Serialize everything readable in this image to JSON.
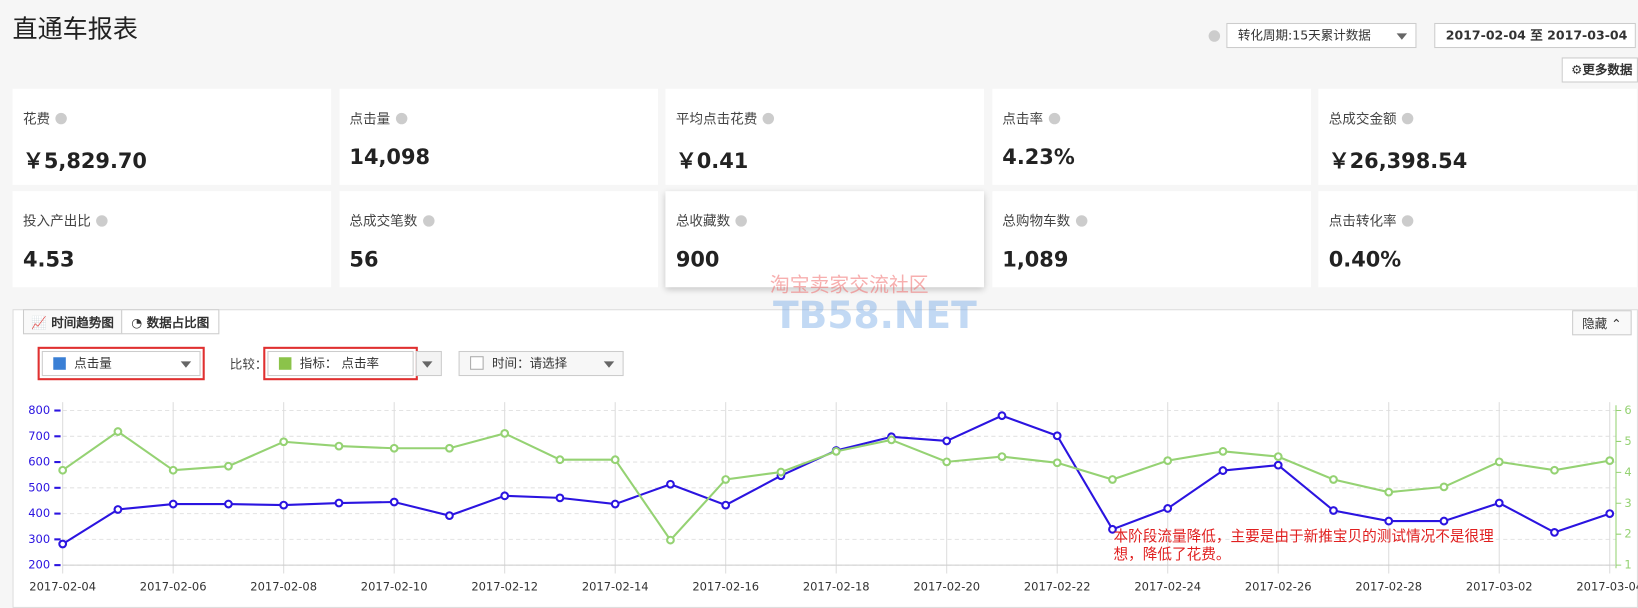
{
  "header": {
    "title": "直通车报表",
    "period": "转化周期:15天累计数据",
    "date_range": "2017-02-04 至 2017-03-04",
    "more": "更多数据"
  },
  "metrics": [
    {
      "label": "花费",
      "value": "￥5,829.70"
    },
    {
      "label": "点击量",
      "value": "14,098"
    },
    {
      "label": "平均点击花费",
      "value": "￥0.41"
    },
    {
      "label": "点击率",
      "value": "4.23%"
    },
    {
      "label": "总成交金额",
      "value": "￥26,398.54"
    },
    {
      "label": "投入产出比",
      "value": "4.53"
    },
    {
      "label": "总成交笔数",
      "value": "56"
    },
    {
      "label": "总收藏数",
      "value": "900"
    },
    {
      "label": "总购物车数",
      "value": "1,089"
    },
    {
      "label": "点击转化率",
      "value": "0.40%"
    }
  ],
  "tabs": [
    "时间趋势图",
    "数据占比图"
  ],
  "hide": "隐藏",
  "selectors": {
    "compare_label": "比较：",
    "indicator_label": "指标：",
    "time": "时间：请选择"
  },
  "watermark": {
    "text": "淘宝卖家交流社区",
    "site": "TB58.NET"
  },
  "chart_data": {
    "type": "line",
    "categories": [
      "2017-02-04",
      null,
      "2017-02-06",
      null,
      "2017-02-08",
      null,
      "2017-02-10",
      null,
      "2017-02-12",
      null,
      "2017-02-14",
      null,
      "2017-02-16",
      null,
      "2017-02-18",
      null,
      "2017-02-20",
      null,
      "2017-02-22",
      null,
      "2017-02-24",
      null,
      "2017-02-26",
      null,
      "2017-02-28",
      null,
      "2017-03-02",
      null,
      "2017-03-04"
    ],
    "series": [
      {
        "name": "点击量",
        "color": "#2b14e0",
        "axis": "y",
        "values": [
          282,
          416,
          437,
          437,
          433,
          441,
          445,
          392,
          469,
          461,
          437,
          514,
          433,
          547,
          645,
          698,
          682,
          780,
          702,
          339,
          420,
          567,
          588,
          412,
          371,
          371,
          441,
          327,
          400
        ]
      },
      {
        "name": "点击率",
        "color": "#95d273",
        "axis": "y2",
        "values": [
          4.07,
          5.32,
          4.07,
          4.2,
          4.99,
          4.85,
          4.78,
          4.78,
          5.26,
          4.41,
          4.41,
          1.81,
          3.77,
          4.01,
          4.68,
          5.05,
          4.34,
          4.51,
          4.31,
          3.77,
          4.38,
          4.68,
          4.51,
          3.77,
          3.36,
          3.53,
          4.34,
          4.07,
          4.38
        ]
      }
    ],
    "ylim": [
      200,
      800
    ],
    "yticks": [
      200,
      300,
      400,
      500,
      600,
      700,
      800
    ],
    "y2lim": [
      1,
      6
    ],
    "y2ticks": [
      1,
      2,
      3,
      4,
      5,
      6
    ],
    "grid": true,
    "annotation": "本阶段流量降低，主要是由于新推宝贝的测试情况不是很理想，降低了花费。"
  }
}
